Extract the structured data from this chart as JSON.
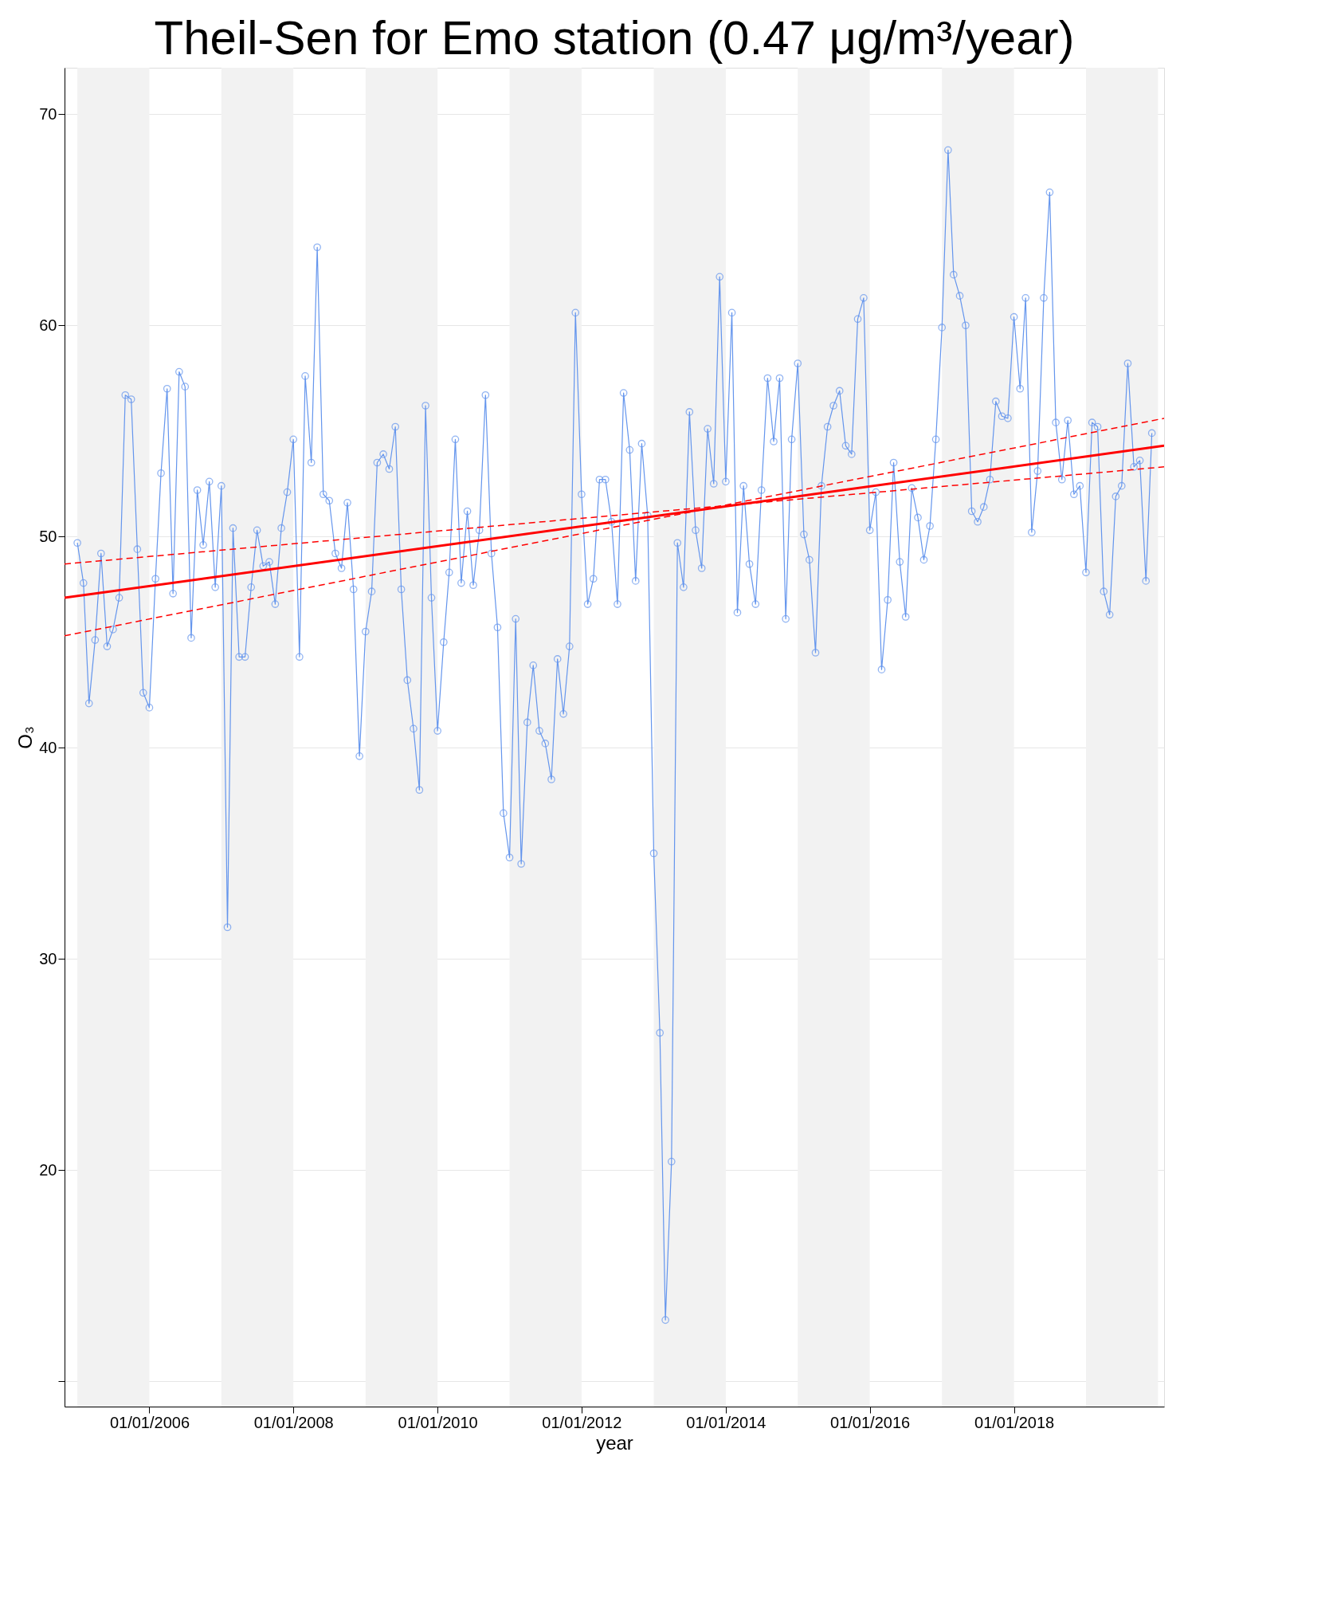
{
  "chart_data": {
    "type": "line",
    "title": "Theil-Sen for Emo station (0.47 μg/m³/year)",
    "xlabel": "year",
    "ylabel": "O₃",
    "x": [
      "2005-01",
      "2005-02",
      "2005-03",
      "2005-04",
      "2005-05",
      "2005-06",
      "2005-07",
      "2005-08",
      "2005-09",
      "2005-10",
      "2005-11",
      "2005-12",
      "2006-01",
      "2006-02",
      "2006-03",
      "2006-04",
      "2006-05",
      "2006-06",
      "2006-07",
      "2006-08",
      "2006-09",
      "2006-10",
      "2006-11",
      "2006-12",
      "2007-01",
      "2007-02",
      "2007-03",
      "2007-04",
      "2007-05",
      "2007-06",
      "2007-07",
      "2007-08",
      "2007-09",
      "2007-10",
      "2007-11",
      "2007-12",
      "2008-01",
      "2008-02",
      "2008-03",
      "2008-04",
      "2008-05",
      "2008-06",
      "2008-07",
      "2008-08",
      "2008-09",
      "2008-10",
      "2008-11",
      "2008-12",
      "2009-01",
      "2009-02",
      "2009-03",
      "2009-04",
      "2009-05",
      "2009-06",
      "2009-07",
      "2009-08",
      "2009-09",
      "2009-10",
      "2009-11",
      "2009-12",
      "2010-01",
      "2010-02",
      "2010-03",
      "2010-04",
      "2010-05",
      "2010-06",
      "2010-07",
      "2010-08",
      "2010-09",
      "2010-10",
      "2010-11",
      "2010-12",
      "2011-01",
      "2011-02",
      "2011-03",
      "2011-04",
      "2011-05",
      "2011-06",
      "2011-07",
      "2011-08",
      "2011-09",
      "2011-10",
      "2011-11",
      "2011-12",
      "2012-01",
      "2012-02",
      "2012-03",
      "2012-04",
      "2012-05",
      "2012-06",
      "2012-07",
      "2012-08",
      "2012-09",
      "2012-10",
      "2012-11",
      "2012-12",
      "2013-01",
      "2013-02",
      "2013-03",
      "2013-04",
      "2013-05",
      "2013-06",
      "2013-07",
      "2013-08",
      "2013-09",
      "2013-10",
      "2013-11",
      "2013-12",
      "2014-01",
      "2014-02",
      "2014-03",
      "2014-04",
      "2014-05",
      "2014-06",
      "2014-07",
      "2014-08",
      "2014-09",
      "2014-10",
      "2014-11",
      "2014-12",
      "2015-01",
      "2015-02",
      "2015-03",
      "2015-04",
      "2015-05",
      "2015-06",
      "2015-07",
      "2015-08",
      "2015-09",
      "2015-10",
      "2015-11",
      "2015-12",
      "2016-01",
      "2016-02",
      "2016-03",
      "2016-04",
      "2016-05",
      "2016-06",
      "2016-07",
      "2016-08",
      "2016-09",
      "2016-10",
      "2016-11",
      "2016-12",
      "2017-01",
      "2017-02",
      "2017-03",
      "2017-04",
      "2017-05",
      "2017-06",
      "2017-07",
      "2017-08",
      "2017-09",
      "2017-10",
      "2017-11",
      "2017-12",
      "2018-01",
      "2018-02",
      "2018-03",
      "2018-04",
      "2018-05",
      "2018-06",
      "2018-07",
      "2018-08",
      "2018-09",
      "2018-10",
      "2018-11",
      "2018-12",
      "2019-01",
      "2019-02",
      "2019-03",
      "2019-04",
      "2019-05",
      "2019-06",
      "2019-07",
      "2019-08",
      "2019-09",
      "2019-10",
      "2019-11",
      "2019-12"
    ],
    "series": [
      {
        "color": "#6495ed",
        "marker": "circle",
        "line_style": "solid",
        "values": [
          49.7,
          47.8,
          42.1,
          45.1,
          49.2,
          44.8,
          45.6,
          47.1,
          56.7,
          56.5,
          49.4,
          42.6,
          41.9,
          48.0,
          53.0,
          57.0,
          47.3,
          57.8,
          57.1,
          45.2,
          52.2,
          49.6,
          52.6,
          47.6,
          52.4,
          31.5,
          50.4,
          44.3,
          44.3,
          47.6,
          50.3,
          48.6,
          48.8,
          46.8,
          50.4,
          52.1,
          54.6,
          44.3,
          57.6,
          53.5,
          63.7,
          52.0,
          51.7,
          49.2,
          48.5,
          51.6,
          47.5,
          39.6,
          45.5,
          47.4,
          53.5,
          53.9,
          53.2,
          55.2,
          47.5,
          43.2,
          40.9,
          38.0,
          56.2,
          47.1,
          40.8,
          45.0,
          48.3,
          54.6,
          47.8,
          51.2,
          47.7,
          50.3,
          56.7,
          49.2,
          45.7,
          36.9,
          34.8,
          46.1,
          34.5,
          41.2,
          43.9,
          40.8,
          40.2,
          38.5,
          44.2,
          41.6,
          44.8,
          60.6,
          52.0,
          46.8,
          48.0,
          52.7,
          52.7,
          50.7,
          46.8,
          56.8,
          54.1,
          47.9,
          54.4,
          51.0,
          35.0,
          26.5,
          12.9,
          20.4,
          49.7,
          47.6,
          55.9,
          50.3,
          48.5,
          55.1,
          52.5,
          62.3,
          52.6,
          60.6,
          46.4,
          52.4,
          48.7,
          46.8,
          52.2,
          57.5,
          54.5,
          57.5,
          46.1,
          54.6,
          58.2,
          50.1,
          48.9,
          44.5,
          52.4,
          55.2,
          56.2,
          56.9,
          54.3,
          53.9,
          60.3,
          61.3,
          50.3,
          52.1,
          43.7,
          47.0,
          53.5,
          48.8,
          46.2,
          52.3,
          50.9,
          48.9,
          50.5,
          54.6,
          59.9,
          68.3,
          62.4,
          61.4,
          60.0,
          51.2,
          50.7,
          51.4,
          52.7,
          56.4,
          55.7,
          55.6,
          60.4,
          57.0,
          61.3,
          50.2,
          53.1,
          61.3,
          66.3,
          55.4,
          52.7,
          55.5,
          52.0,
          52.4,
          48.3,
          55.4,
          55.2,
          47.4,
          46.3,
          51.9,
          52.4,
          58.2,
          53.3,
          53.6,
          47.9,
          54.9
        ]
      },
      {
        "color": "#ff0000",
        "marker": "none",
        "line_style": "solid",
        "x": [
          "2004-10-28",
          "2020-02-01"
        ],
        "values": [
          47.1,
          54.3
        ]
      },
      {
        "color": "#ff0000",
        "marker": "none",
        "line_style": "dashed",
        "x": [
          "2004-10-28",
          "2020-02-01"
        ],
        "values": [
          48.7,
          53.3
        ]
      },
      {
        "color": "#ff0000",
        "marker": "none",
        "line_style": "dashed",
        "x": [
          "2004-10-28",
          "2020-02-01"
        ],
        "values": [
          45.3,
          55.6
        ]
      }
    ],
    "xlim": [
      "2004-10-28",
      "2020-02-01"
    ],
    "xticks": [
      {
        "value": "2006-01-01",
        "label": "01/01/2006"
      },
      {
        "value": "2008-01-01",
        "label": "01/01/2008"
      },
      {
        "value": "2010-01-01",
        "label": "01/01/2010"
      },
      {
        "value": "2012-01-01",
        "label": "01/01/2012"
      },
      {
        "value": "2014-01-01",
        "label": "01/01/2014"
      },
      {
        "value": "2016-01-01",
        "label": "01/01/2016"
      },
      {
        "value": "2018-01-01",
        "label": "01/01/2018"
      }
    ],
    "ylim": [
      8.8,
      72.2
    ],
    "yticks": [
      {
        "value": 10,
        "label": null
      },
      20,
      30,
      40,
      50,
      60,
      70
    ],
    "bands": [
      {
        "axis": "x",
        "from": "2005-01-01",
        "to": "2006-01-01",
        "color": "#f2f2f2"
      },
      {
        "axis": "x",
        "from": "2007-01-01",
        "to": "2008-01-01",
        "color": "#f2f2f2"
      },
      {
        "axis": "x",
        "from": "2009-01-01",
        "to": "2010-01-01",
        "color": "#f2f2f2"
      },
      {
        "axis": "x",
        "from": "2011-01-01",
        "to": "2012-01-01",
        "color": "#f2f2f2"
      },
      {
        "axis": "x",
        "from": "2013-01-01",
        "to": "2014-01-01",
        "color": "#f2f2f2"
      },
      {
        "axis": "x",
        "from": "2015-01-01",
        "to": "2016-01-01",
        "color": "#f2f2f2"
      },
      {
        "axis": "x",
        "from": "2017-01-01",
        "to": "2018-01-01",
        "color": "#f2f2f2"
      },
      {
        "axis": "x",
        "from": "2019-01-01",
        "to": "2020-01-01",
        "color": "#f2f2f2"
      }
    ],
    "grid": "y"
  }
}
